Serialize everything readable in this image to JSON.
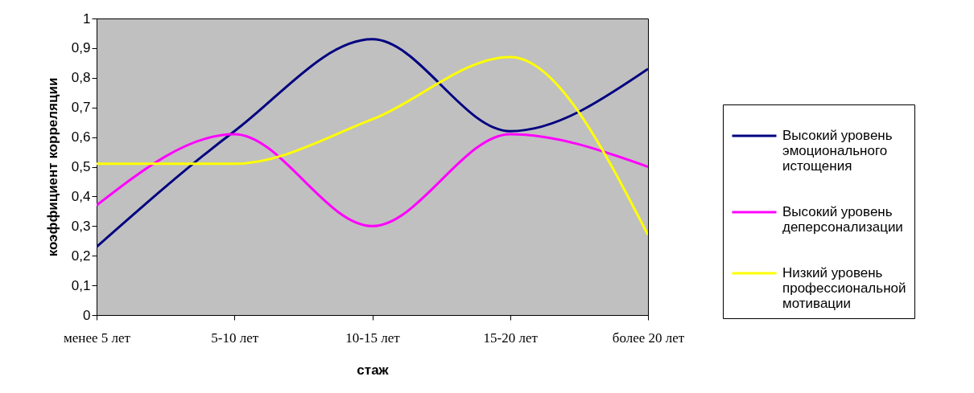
{
  "chart_data": {
    "type": "line",
    "xlabel": "стаж",
    "ylabel": "коэффициент корреляции",
    "categories": [
      "менее 5 лет",
      "5-10 лет",
      "10-15 лет",
      "15-20 лет",
      "более 20 лет"
    ],
    "series": [
      {
        "name": "Высокий уровень эмоционального истощения",
        "color": "#000080",
        "values": [
          0.23,
          0.62,
          0.93,
          0.62,
          0.83
        ]
      },
      {
        "name": "Высокий уровень деперсонализации",
        "color": "#ff00ff",
        "values": [
          0.37,
          0.61,
          0.3,
          0.61,
          0.5
        ]
      },
      {
        "name": "Низкий уровень профессиональной мотивации",
        "color": "#ffff00",
        "values": [
          0.51,
          0.51,
          0.66,
          0.87,
          0.27
        ]
      }
    ],
    "ylim": [
      0,
      1
    ],
    "yticks": [
      0,
      {
        "value": 0.1,
        "label": "0,1"
      },
      {
        "value": 0.2,
        "label": "0,2"
      },
      {
        "value": 0.3,
        "label": "0,3"
      },
      {
        "value": 0.4,
        "label": "0,4"
      },
      {
        "value": 0.5,
        "label": "0,5"
      },
      {
        "value": 0.6,
        "label": "0,6"
      },
      {
        "value": 0.7,
        "label": "0,7"
      },
      {
        "value": 0.8,
        "label": "0,8"
      },
      {
        "value": 0.9,
        "label": "0,9"
      },
      1
    ],
    "grid": false,
    "legend": "right",
    "marker": "none",
    "line_style": "solid"
  }
}
